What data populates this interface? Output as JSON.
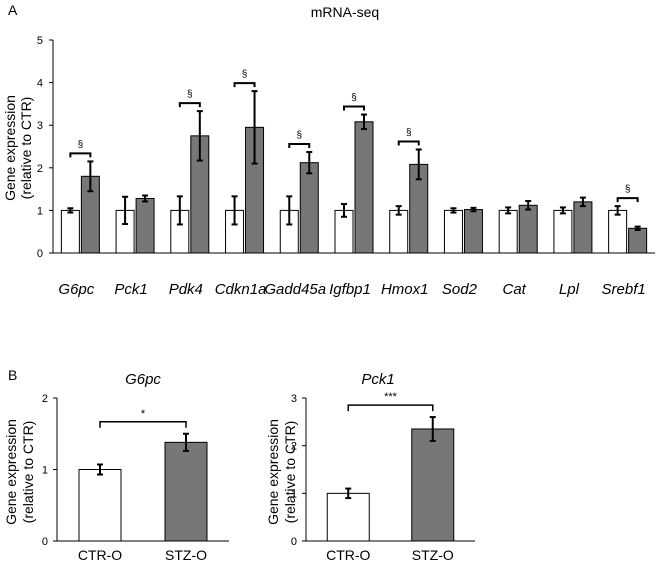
{
  "panels": {
    "a": "A",
    "b": "B"
  },
  "colors": {
    "ctr": "#ffffff",
    "stz": "#777777",
    "stroke": "#000000"
  },
  "chart_data": [
    {
      "type": "bar",
      "title": "mRNA-seq",
      "ylabel": [
        "Gene expression",
        "(relative to CTR)"
      ],
      "ylim": [
        0,
        5
      ],
      "yticks": [
        "0",
        "1",
        "2",
        "3",
        "4",
        "5"
      ],
      "categories": [
        "G6pc",
        "Pck1",
        "Pdk4",
        "Cdkn1a",
        "Gadd45a",
        "Igfbp1",
        "Hmox1",
        "Sod2",
        "Cat",
        "Lpl",
        "Srebf1"
      ],
      "series": [
        {
          "name": "CTR",
          "values": [
            1.0,
            1.0,
            1.0,
            1.0,
            1.0,
            1.0,
            1.0,
            1.0,
            1.0,
            1.0,
            1.0
          ],
          "errors": [
            0.05,
            0.32,
            0.33,
            0.33,
            0.33,
            0.15,
            0.1,
            0.05,
            0.07,
            0.07,
            0.1
          ]
        },
        {
          "name": "STZ",
          "values": [
            1.8,
            1.28,
            2.75,
            2.95,
            2.12,
            3.08,
            2.08,
            1.02,
            1.12,
            1.2,
            0.58
          ],
          "errors": [
            0.35,
            0.07,
            0.58,
            0.85,
            0.25,
            0.17,
            0.35,
            0.04,
            0.1,
            0.1,
            0.04
          ]
        }
      ],
      "significance": [
        "§",
        "",
        "§",
        "§",
        "§",
        "§",
        "§",
        "",
        "",
        "",
        "§"
      ]
    },
    {
      "type": "bar",
      "title": "G6pc",
      "ylabel": [
        "Gene expression",
        "(relative to CTR)"
      ],
      "ylim": [
        0,
        2
      ],
      "yticks": [
        "0",
        "1",
        "2"
      ],
      "categories": [
        "CTR-O",
        "STZ-O"
      ],
      "values": [
        1.0,
        1.38
      ],
      "errors": [
        0.07,
        0.12
      ],
      "significance": "*"
    },
    {
      "type": "bar",
      "title": "Pck1",
      "ylabel": [
        "Gene expression",
        "(relative to CTR)"
      ],
      "ylim": [
        0,
        3
      ],
      "yticks": [
        "0",
        "1",
        "2",
        "3"
      ],
      "categories": [
        "CTR-O",
        "STZ-O"
      ],
      "values": [
        1.0,
        2.35
      ],
      "errors": [
        0.1,
        0.25
      ],
      "significance": "***"
    }
  ]
}
